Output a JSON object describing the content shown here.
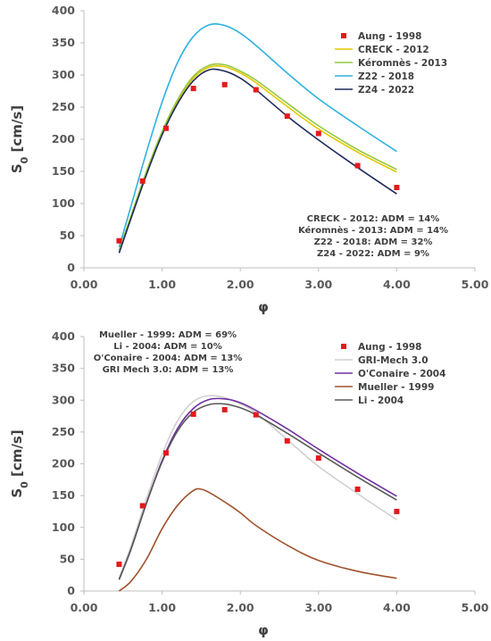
{
  "chart_data": [
    {
      "type": "line",
      "title": "",
      "xlabel": "φ",
      "ylabel_main": "S",
      "ylabel_sub": "0",
      "ylabel_unit": " [cm/s]",
      "xlim": [
        0,
        5
      ],
      "ylim": [
        0,
        400
      ],
      "xticks": [
        "0.00",
        "1.00",
        "2.00",
        "3.00",
        "4.00",
        "5.00"
      ],
      "yticks": [
        "0",
        "50",
        "100",
        "150",
        "200",
        "250",
        "300",
        "350",
        "400"
      ],
      "grid": false,
      "legend_position": "top-right",
      "experimental": {
        "name": "Aung - 1998",
        "color": "#e31a1c",
        "points": [
          [
            0.45,
            42
          ],
          [
            0.75,
            135
          ],
          [
            1.05,
            217
          ],
          [
            1.4,
            279
          ],
          [
            1.8,
            285
          ],
          [
            2.2,
            277
          ],
          [
            2.6,
            236
          ],
          [
            3.0,
            209
          ],
          [
            3.5,
            159
          ],
          [
            4.0,
            125
          ]
        ]
      },
      "series": [
        {
          "name": "CRECK - 2012",
          "color": "#e4c800",
          "points": [
            [
              0.45,
              27
            ],
            [
              0.6,
              80
            ],
            [
              0.8,
              150
            ],
            [
              1.0,
              210
            ],
            [
              1.2,
              260
            ],
            [
              1.4,
              295
            ],
            [
              1.6,
              312
            ],
            [
              1.8,
              313
            ],
            [
              2.0,
              303
            ],
            [
              2.2,
              288
            ],
            [
              2.6,
              251
            ],
            [
              3.0,
              216
            ],
            [
              3.5,
              180
            ],
            [
              4.0,
              149
            ]
          ]
        },
        {
          "name": "Kéromnès - 2013",
          "color": "#92c83e",
          "points": [
            [
              0.45,
              27
            ],
            [
              0.6,
              80
            ],
            [
              0.8,
              150
            ],
            [
              1.0,
              212
            ],
            [
              1.2,
              262
            ],
            [
              1.4,
              298
            ],
            [
              1.6,
              315
            ],
            [
              1.8,
              316
            ],
            [
              2.0,
              306
            ],
            [
              2.2,
              292
            ],
            [
              2.6,
              256
            ],
            [
              3.0,
              221
            ],
            [
              3.5,
              184
            ],
            [
              4.0,
              153
            ]
          ]
        },
        {
          "name": "Z22 - 2018",
          "color": "#2fb2e0",
          "points": [
            [
              0.45,
              32
            ],
            [
              0.6,
              95
            ],
            [
              0.8,
              180
            ],
            [
              1.0,
              258
            ],
            [
              1.2,
              320
            ],
            [
              1.4,
              360
            ],
            [
              1.6,
              378
            ],
            [
              1.8,
              377
            ],
            [
              2.0,
              365
            ],
            [
              2.2,
              346
            ],
            [
              2.6,
              303
            ],
            [
              3.0,
              263
            ],
            [
              3.5,
              221
            ],
            [
              4.0,
              181
            ]
          ]
        },
        {
          "name": "Z24 - 2022",
          "color": "#1f2a5c",
          "points": [
            [
              0.45,
              23
            ],
            [
              0.6,
              76
            ],
            [
              0.8,
              145
            ],
            [
              1.0,
              207
            ],
            [
              1.2,
              256
            ],
            [
              1.4,
              291
            ],
            [
              1.6,
              308
            ],
            [
              1.8,
              306
            ],
            [
              2.0,
              295
            ],
            [
              2.2,
              277
            ],
            [
              2.6,
              236
            ],
            [
              3.0,
              199
            ],
            [
              3.5,
              156
            ],
            [
              4.0,
              115
            ]
          ]
        }
      ],
      "annotations": [
        "CRECK - 2012: ADM = 14%",
        "Kéromnès - 2013: ADM = 14%",
        "Z22 - 2018: ADM = 32%",
        "Z24 - 2022: ADM = 9%"
      ]
    },
    {
      "type": "line",
      "title": "",
      "xlabel": "φ",
      "ylabel_main": "S",
      "ylabel_sub": "0",
      "ylabel_unit": " [cm/s]",
      "xlim": [
        0,
        5
      ],
      "ylim": [
        0,
        400
      ],
      "xticks": [
        "0.00",
        "1.00",
        "2.00",
        "3.00",
        "4.00",
        "5.00"
      ],
      "yticks": [
        "0",
        "50",
        "100",
        "150",
        "200",
        "250",
        "300",
        "350",
        "400"
      ],
      "grid": false,
      "legend_position": "top-right",
      "experimental": {
        "name": "Aung - 1998",
        "color": "#e31a1c",
        "points": [
          [
            0.45,
            42
          ],
          [
            0.75,
            134
          ],
          [
            1.05,
            217
          ],
          [
            1.4,
            278
          ],
          [
            1.8,
            285
          ],
          [
            2.2,
            277
          ],
          [
            2.6,
            236
          ],
          [
            3.0,
            209
          ],
          [
            3.5,
            160
          ],
          [
            4.0,
            125
          ]
        ]
      },
      "series": [
        {
          "name": "GRI-Mech 3.0",
          "color": "#d0d0d0",
          "points": [
            [
              0.45,
              20
            ],
            [
              0.6,
              70
            ],
            [
              0.8,
              145
            ],
            [
              1.0,
              215
            ],
            [
              1.2,
              268
            ],
            [
              1.4,
              298
            ],
            [
              1.6,
              307
            ],
            [
              1.8,
              304
            ],
            [
              2.0,
              294
            ],
            [
              2.2,
              280
            ],
            [
              2.6,
              238
            ],
            [
              3.0,
              196
            ],
            [
              3.5,
              153
            ],
            [
              4.0,
              112
            ]
          ]
        },
        {
          "name": "O'Conaire - 2004",
          "color": "#7030a0",
          "points": [
            [
              0.45,
              18
            ],
            [
              0.6,
              65
            ],
            [
              0.8,
              138
            ],
            [
              1.0,
              205
            ],
            [
              1.2,
              256
            ],
            [
              1.4,
              287
            ],
            [
              1.6,
              301
            ],
            [
              1.8,
              302
            ],
            [
              2.0,
              296
            ],
            [
              2.2,
              284
            ],
            [
              2.6,
              255
            ],
            [
              3.0,
              223
            ],
            [
              3.5,
              185
            ],
            [
              4.0,
              149
            ]
          ]
        },
        {
          "name": "Mueller - 1999",
          "color": "#a0522d",
          "points": [
            [
              0.45,
              0
            ],
            [
              0.6,
              15
            ],
            [
              0.8,
              50
            ],
            [
              1.0,
              98
            ],
            [
              1.2,
              135
            ],
            [
              1.4,
              158
            ],
            [
              1.5,
              160
            ],
            [
              1.6,
              155
            ],
            [
              1.8,
              140
            ],
            [
              2.0,
              123
            ],
            [
              2.2,
              103
            ],
            [
              2.6,
              72
            ],
            [
              3.0,
              48
            ],
            [
              3.5,
              31
            ],
            [
              4.0,
              20
            ]
          ]
        },
        {
          "name": "Li - 2004",
          "color": "#595959",
          "points": [
            [
              0.45,
              18
            ],
            [
              0.6,
              65
            ],
            [
              0.8,
              138
            ],
            [
              1.0,
              203
            ],
            [
              1.2,
              252
            ],
            [
              1.4,
              281
            ],
            [
              1.6,
              293
            ],
            [
              1.8,
              294
            ],
            [
              2.0,
              288
            ],
            [
              2.2,
              277
            ],
            [
              2.6,
              248
            ],
            [
              3.0,
              217
            ],
            [
              3.5,
              179
            ],
            [
              4.0,
              143
            ]
          ]
        }
      ],
      "annotations": [
        "Mueller - 1999: ADM = 69%",
        "Li - 2004: ADM = 10%",
        "O'Conaire - 2004: ADM = 13%",
        "GRI Mech 3.0: ADM = 13%"
      ]
    }
  ]
}
